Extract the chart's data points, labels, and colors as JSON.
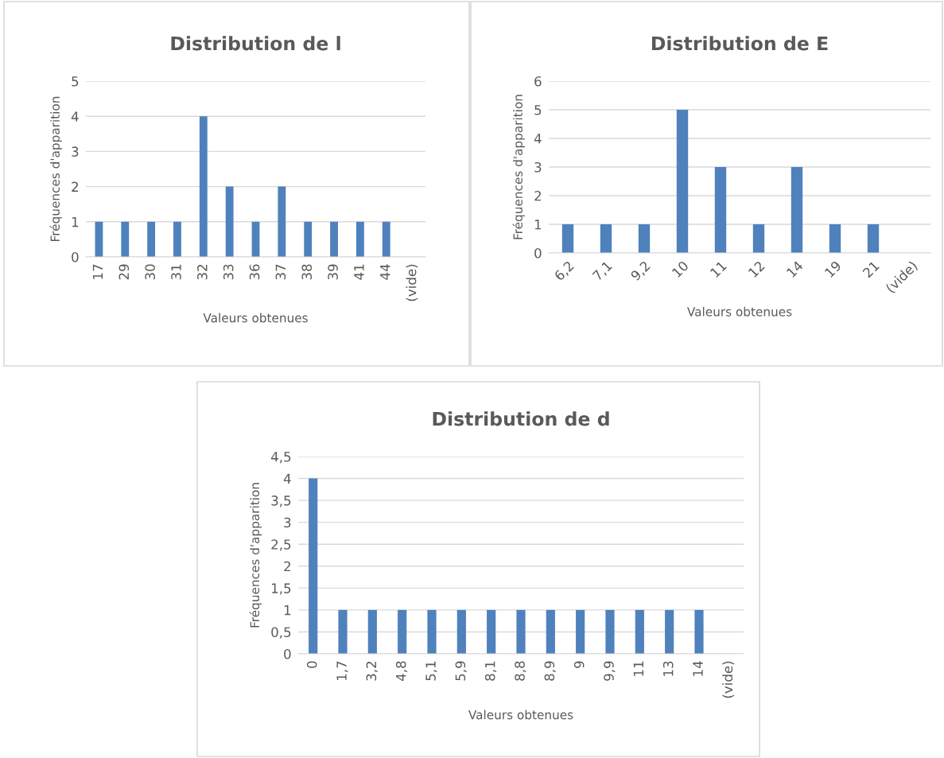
{
  "chart_data": [
    {
      "type": "bar",
      "title": "Distribution de l",
      "xlabel": "Valeurs obtenues",
      "ylabel": "Fréquences d'apparition",
      "categories": [
        "17",
        "29",
        "30",
        "31",
        "32",
        "33",
        "36",
        "37",
        "38",
        "39",
        "41",
        "44",
        "(vide)"
      ],
      "values": [
        1,
        1,
        1,
        1,
        4,
        2,
        1,
        2,
        1,
        1,
        1,
        1,
        null
      ],
      "color": "#4f81bd",
      "ylim": [
        0,
        5
      ],
      "yticks": [
        0,
        1,
        2,
        3,
        4,
        5
      ],
      "grid": "y",
      "legend": false
    },
    {
      "type": "bar",
      "title": "Distribution de E",
      "xlabel": "Valeurs obtenues",
      "ylabel": "Fréquences d'apparition",
      "categories": [
        "6,2",
        "7,1",
        "9,2",
        "10",
        "11",
        "12",
        "14",
        "19",
        "21",
        "(vide)"
      ],
      "values": [
        1,
        1,
        1,
        5,
        3,
        1,
        3,
        1,
        1,
        null
      ],
      "color": "#4f81bd",
      "ylim": [
        0,
        6
      ],
      "yticks": [
        0,
        1,
        2,
        3,
        4,
        5,
        6
      ],
      "grid": "y",
      "legend": false
    },
    {
      "type": "bar",
      "title": "Distribution de d",
      "xlabel": "Valeurs obtenues",
      "ylabel": "Fréquences d'apparition",
      "categories": [
        "0",
        "1,7",
        "3,2",
        "4,8",
        "5,1",
        "5,9",
        "8,1",
        "8,8",
        "8,9",
        "9",
        "9,9",
        "11",
        "13",
        "14",
        "(vide)"
      ],
      "values": [
        4,
        1,
        1,
        1,
        1,
        1,
        1,
        1,
        1,
        1,
        1,
        1,
        1,
        1,
        null
      ],
      "color": "#4f81bd",
      "ylim": [
        0,
        4.5
      ],
      "yticks": [
        0,
        {
          "value": 0.5,
          "label": "0,5"
        },
        1,
        {
          "value": 1.5,
          "label": "1,5"
        },
        2,
        {
          "value": 2.5,
          "label": "2,5"
        },
        3,
        {
          "value": 3.5,
          "label": "3,5"
        },
        4,
        {
          "value": 4.5,
          "label": "4,5"
        }
      ],
      "grid": "y",
      "legend": false
    }
  ]
}
